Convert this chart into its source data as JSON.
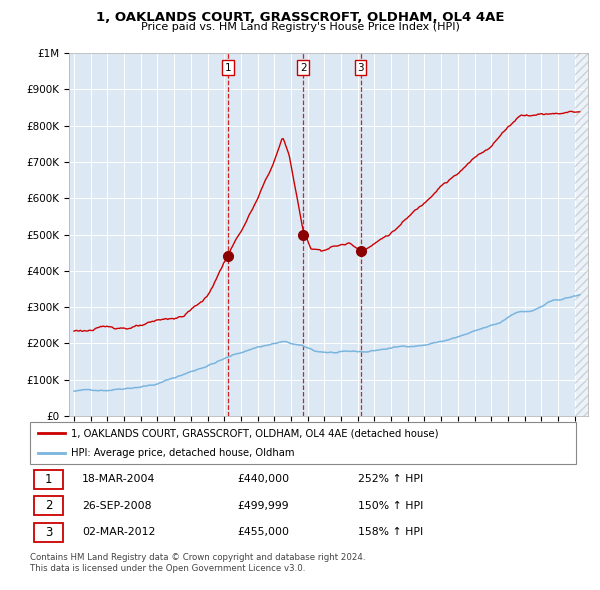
{
  "title": "1, OAKLANDS COURT, GRASSCROFT, OLDHAM, OL4 4AE",
  "subtitle": "Price paid vs. HM Land Registry's House Price Index (HPI)",
  "legend_line1": "1, OAKLANDS COURT, GRASSCROFT, OLDHAM, OL4 4AE (detached house)",
  "legend_line2": "HPI: Average price, detached house, Oldham",
  "transactions": [
    {
      "num": 1,
      "date": "18-MAR-2004",
      "price": 440000,
      "pct": "252%",
      "dir": "↑"
    },
    {
      "num": 2,
      "date": "26-SEP-2008",
      "price": 499999,
      "pct": "150%",
      "dir": "↑"
    },
    {
      "num": 3,
      "date": "02-MAR-2012",
      "price": 455000,
      "pct": "158%",
      "dir": "↑"
    }
  ],
  "sale_dates_decimal": [
    2004.21,
    2008.74,
    2012.17
  ],
  "sale_prices": [
    440000,
    499999,
    455000
  ],
  "hpi_color": "#7ab5de",
  "price_color": "#cc0000",
  "marker_color": "#8b0000",
  "bg_color": "#dce9f5",
  "grid_color": "#ffffff",
  "footer_text": "Contains HM Land Registry data © Crown copyright and database right 2024.\nThis data is licensed under the Open Government Licence v3.0.",
  "ylim": [
    0,
    1000000
  ],
  "yticks": [
    0,
    100000,
    200000,
    300000,
    400000,
    500000,
    600000,
    700000,
    800000,
    900000,
    1000000
  ],
  "xlim_start": 1994.7,
  "xlim_end": 2025.8
}
